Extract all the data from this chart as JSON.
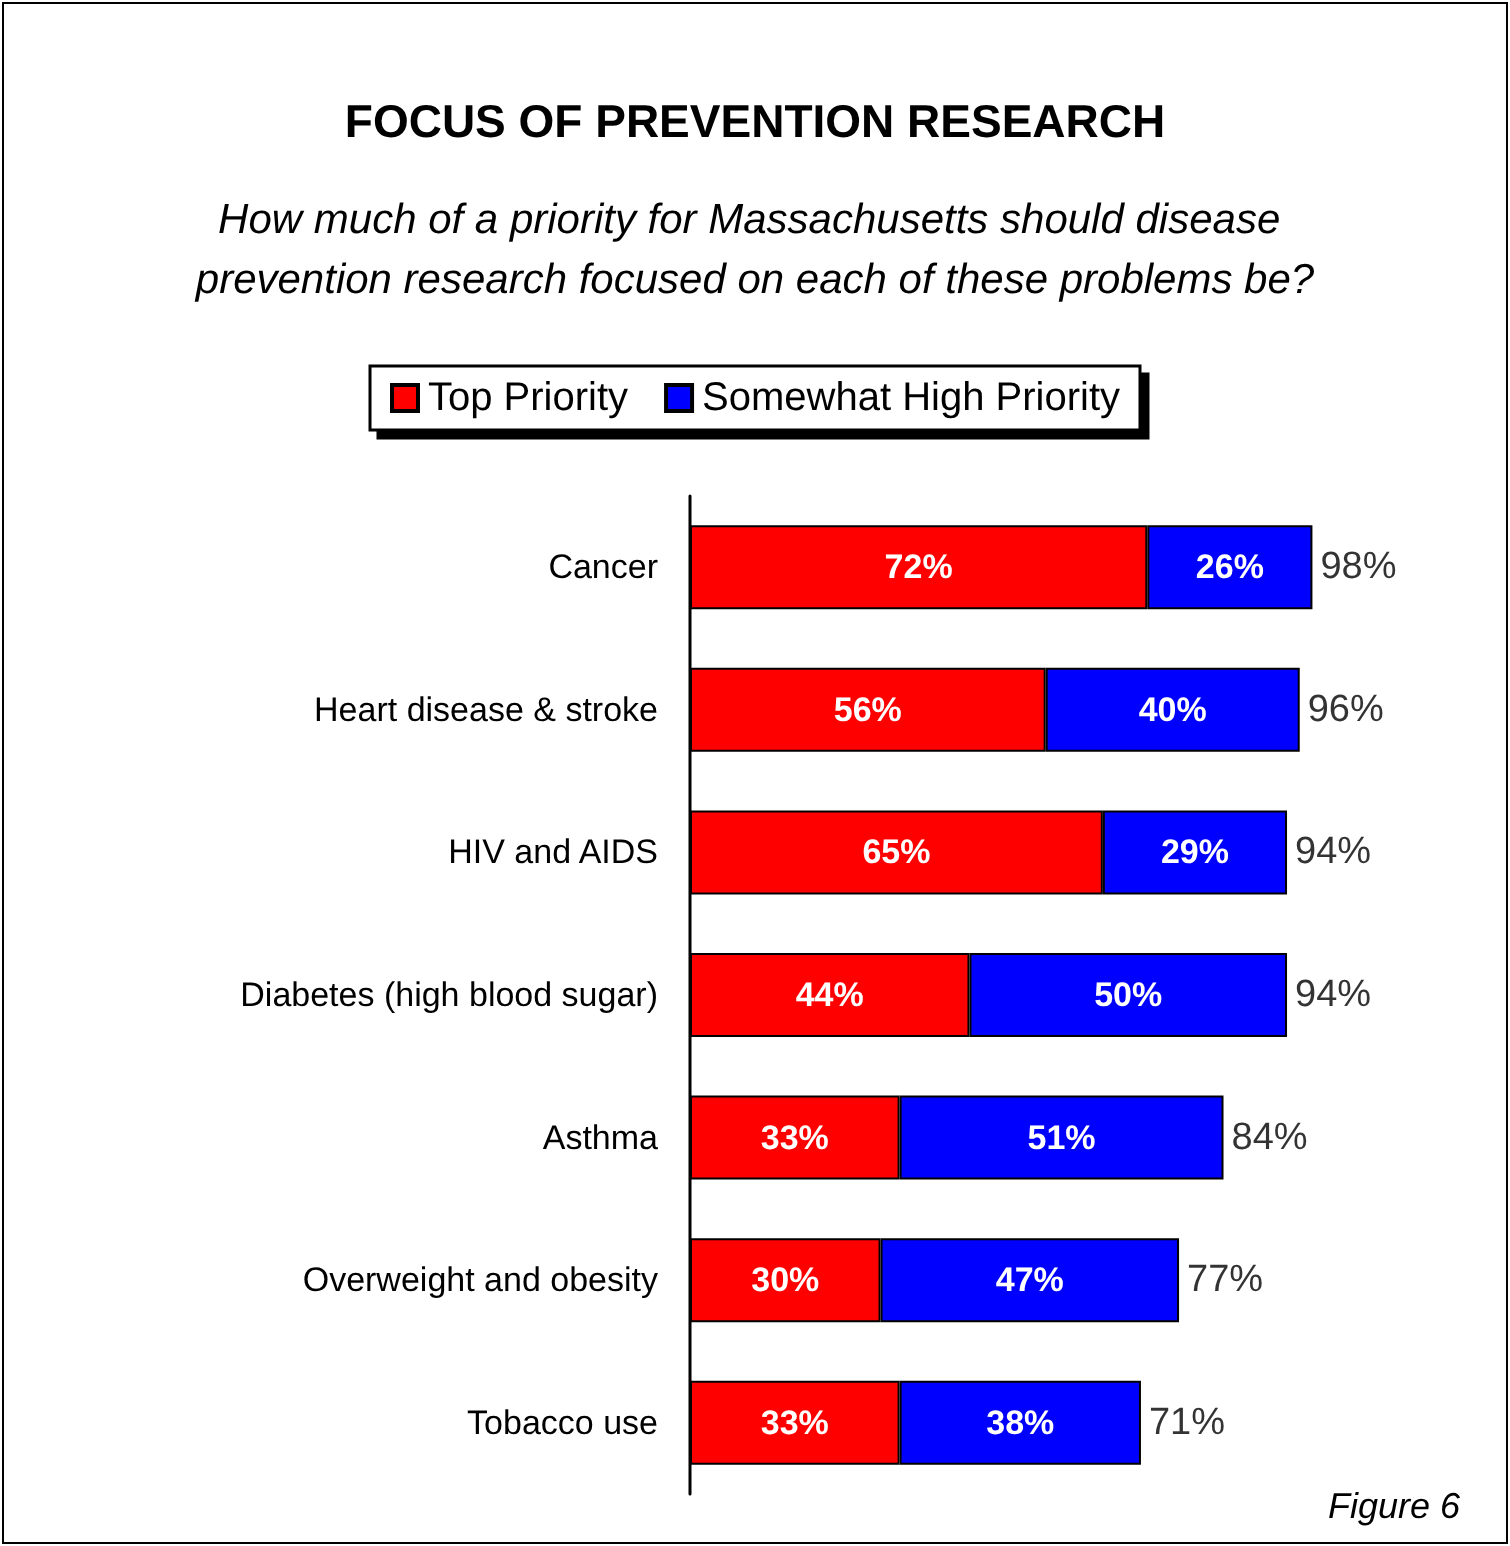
{
  "chart_data": {
    "type": "bar",
    "orientation": "horizontal",
    "stacked": true,
    "title": "FOCUS OF PREVENTION RESEARCH",
    "subtitle": "How much of a priority for Massachusetts should disease prevention research focused on each of these problems be?",
    "categories": [
      "Cancer",
      "Heart disease & stroke",
      "HIV and AIDS",
      "Diabetes (high blood sugar)",
      "Asthma",
      "Overweight and obesity",
      "Tobacco use"
    ],
    "series": [
      {
        "name": "Top Priority",
        "color": "#ff0000",
        "values": [
          72,
          56,
          65,
          44,
          33,
          30,
          33
        ],
        "value_labels": [
          "72%",
          "56%",
          "65%",
          "44%",
          "33%",
          "30%",
          "33%"
        ]
      },
      {
        "name": "Somewhat High Priority",
        "color": "#0000ff",
        "values": [
          26,
          40,
          29,
          50,
          51,
          47,
          38
        ],
        "value_labels": [
          "26%",
          "40%",
          "29%",
          "50%",
          "51%",
          "47%",
          "38%"
        ]
      }
    ],
    "totals": [
      "98%",
      "96%",
      "94%",
      "94%",
      "84%",
      "77%",
      "71%"
    ],
    "tick_labels": "y",
    "grid": false,
    "legend": "top",
    "annotations": [
      "Figure 6"
    ]
  }
}
